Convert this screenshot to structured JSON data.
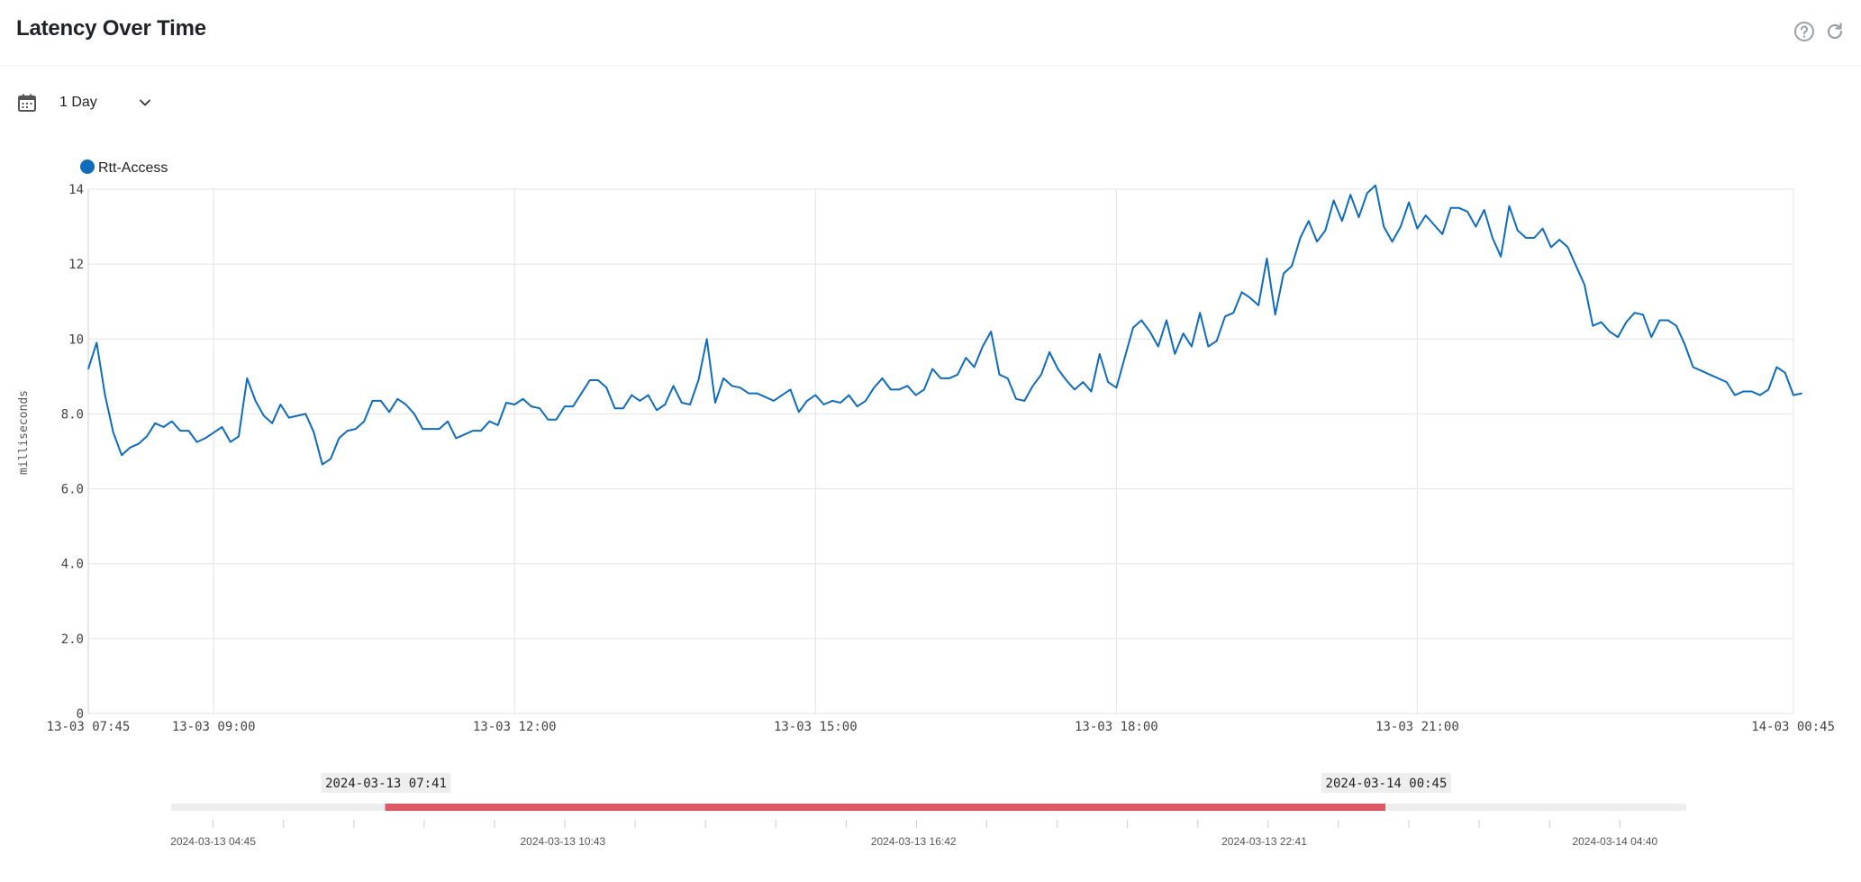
{
  "header": {
    "title": "Latency Over Time",
    "help_icon": "help-circle-icon",
    "refresh_icon": "refresh-icon"
  },
  "controls": {
    "calendar_icon": "calendar-icon",
    "range_value": "1 Day",
    "dropdown_icon": "chevron-down-icon"
  },
  "colors": {
    "series": "#0f6cbd",
    "brush_selection": "#e05767",
    "brush_track": "#eeeeee",
    "grid": "#e4e4e4"
  },
  "chart_data": {
    "type": "line",
    "title": "",
    "ylabel": "milliseconds",
    "xlabel": "",
    "ylim": [
      0,
      14
    ],
    "yticks": [
      "0",
      "2.0",
      "4.0",
      "6.0",
      "8.0",
      "10",
      "12",
      "14"
    ],
    "xlim": [
      "2024-03-13 07:45",
      "2024-03-14 00:45"
    ],
    "xticks": [
      {
        "t": "2024-03-13 07:45",
        "label": "13-03 07:45"
      },
      {
        "t": "2024-03-13 09:00",
        "label": "13-03 09:00"
      },
      {
        "t": "2024-03-13 12:00",
        "label": "13-03 12:00"
      },
      {
        "t": "2024-03-13 15:00",
        "label": "13-03 15:00"
      },
      {
        "t": "2024-03-13 18:00",
        "label": "13-03 18:00"
      },
      {
        "t": "2024-03-13 21:00",
        "label": "13-03 21:00"
      },
      {
        "t": "2024-03-14 00:45",
        "label": "14-03 00:45"
      }
    ],
    "grid": true,
    "legend_position": "top-left",
    "series": [
      {
        "name": "Rtt-Access",
        "color": "#0f6cbd",
        "start": "2024-03-13 07:45",
        "step_minutes": 5,
        "values": [
          9.2,
          9.9,
          8.5,
          7.5,
          6.9,
          7.1,
          7.2,
          7.4,
          7.75,
          7.65,
          7.8,
          7.55,
          7.55,
          7.25,
          7.35,
          7.5,
          7.65,
          7.25,
          7.4,
          8.95,
          8.35,
          7.95,
          7.75,
          8.25,
          7.9,
          7.95,
          8.0,
          7.5,
          6.65,
          6.8,
          7.35,
          7.55,
          7.6,
          7.8,
          8.35,
          8.35,
          8.05,
          8.4,
          8.25,
          8.0,
          7.6,
          7.6,
          7.6,
          7.8,
          7.35,
          7.45,
          7.55,
          7.55,
          7.8,
          7.7,
          8.3,
          8.25,
          8.4,
          8.2,
          8.15,
          7.85,
          7.85,
          8.2,
          8.2,
          8.55,
          8.9,
          8.9,
          8.7,
          8.15,
          8.15,
          8.5,
          8.35,
          8.5,
          8.1,
          8.25,
          8.75,
          8.3,
          8.25,
          8.9,
          10.0,
          8.3,
          8.95,
          8.75,
          8.7,
          8.55,
          8.55,
          8.45,
          8.35,
          8.5,
          8.65,
          8.05,
          8.35,
          8.5,
          8.25,
          8.35,
          8.3,
          8.5,
          8.2,
          8.35,
          8.7,
          8.95,
          8.65,
          8.65,
          8.75,
          8.5,
          8.65,
          9.2,
          8.95,
          8.95,
          9.05,
          9.5,
          9.25,
          9.8,
          10.2,
          9.05,
          8.95,
          8.4,
          8.35,
          8.75,
          9.05,
          9.65,
          9.2,
          8.9,
          8.65,
          8.85,
          8.6,
          9.6,
          8.85,
          8.7,
          9.5,
          10.3,
          10.5,
          10.2,
          9.8,
          10.5,
          9.6,
          10.15,
          9.8,
          10.7,
          9.8,
          9.95,
          10.6,
          10.7,
          11.25,
          11.1,
          10.9,
          12.15,
          10.65,
          11.75,
          11.95,
          12.7,
          13.15,
          12.6,
          12.9,
          13.7,
          13.15,
          13.85,
          13.25,
          13.9,
          14.1,
          13.0,
          12.6,
          13.0,
          13.65,
          12.95,
          13.3,
          13.05,
          12.8,
          13.5,
          13.5,
          13.4,
          13.0,
          13.45,
          12.7,
          12.2,
          13.55,
          12.9,
          12.7,
          12.7,
          12.95,
          12.45,
          12.65,
          12.45,
          11.95,
          11.45,
          10.35,
          10.45,
          10.2,
          10.05,
          10.45,
          10.7,
          10.65,
          10.05,
          10.5,
          10.5,
          10.35,
          9.85,
          9.25,
          9.15,
          9.05,
          8.95,
          8.85,
          8.5,
          8.6,
          8.6,
          8.5,
          8.65,
          9.25,
          9.1,
          8.5,
          8.55
        ]
      }
    ]
  },
  "brush": {
    "start_label": "2024-03-13 07:41",
    "end_label": "2024-03-14 00:45",
    "track_start": "2024-03-13 04:02",
    "track_end": "2024-03-14 05:53",
    "selection_start": "2024-03-13 07:41",
    "selection_end": "2024-03-14 00:45",
    "axis_labels": [
      {
        "t": "2024-03-13 04:45",
        "label": "2024-03-13 04:45"
      },
      {
        "t": "2024-03-13 10:43",
        "label": "2024-03-13 10:43"
      },
      {
        "t": "2024-03-13 16:42",
        "label": "2024-03-13 16:42"
      },
      {
        "t": "2024-03-13 22:41",
        "label": "2024-03-13 22:41"
      },
      {
        "t": "2024-03-14 04:40",
        "label": "2024-03-14 04:40"
      }
    ],
    "tick_interval_minutes": 72
  }
}
